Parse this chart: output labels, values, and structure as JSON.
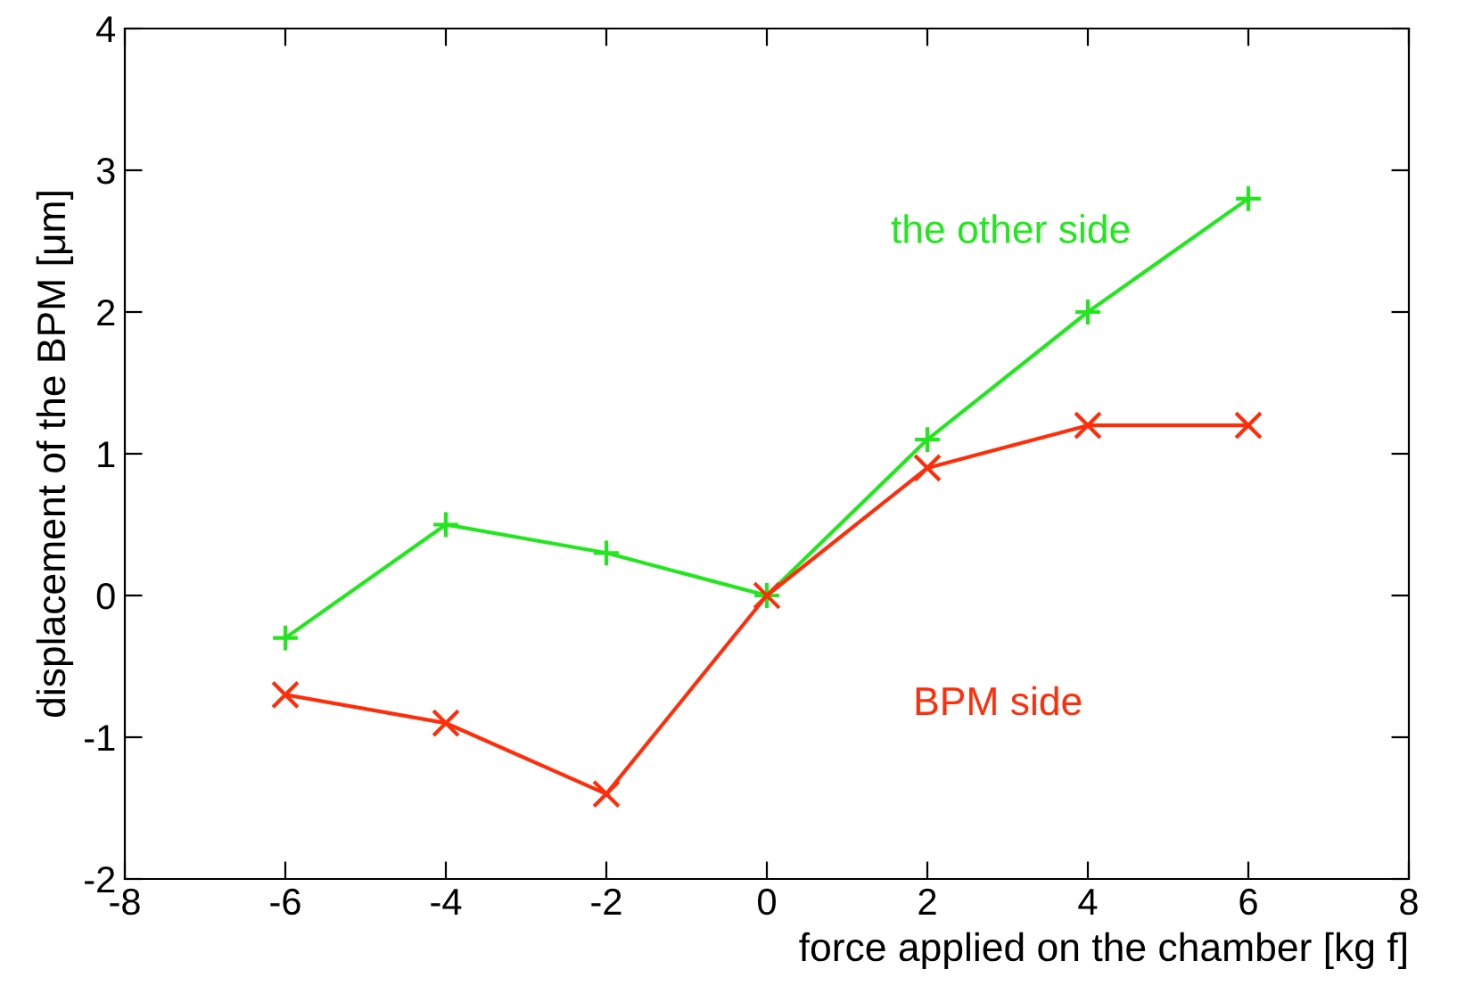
{
  "chart_data": {
    "type": "line",
    "xlabel": "force applied on the chamber [kg f]",
    "ylabel": "displacement of the BPM [μm]",
    "x": [
      -6,
      -4,
      -2,
      0,
      2,
      4,
      6
    ],
    "series": [
      {
        "name": "the other side",
        "color": "#22e61e",
        "marker": "plus",
        "values": [
          -0.3,
          0.5,
          0.3,
          0,
          1.1,
          2.0,
          2.8
        ]
      },
      {
        "name": "BPM side",
        "color": "#ff2d0a",
        "marker": "cross",
        "values": [
          -0.7,
          -0.9,
          -1.4,
          0,
          0.9,
          1.2,
          1.2
        ]
      }
    ],
    "xlim": [
      -8,
      8
    ],
    "xticks": [
      -8,
      -6,
      -4,
      -2,
      0,
      2,
      4,
      6,
      8
    ],
    "ylim": [
      -2,
      4
    ],
    "yticks": [
      -2,
      -1,
      0,
      1,
      2,
      3,
      4
    ],
    "grid": false,
    "legend": false,
    "line_style": "solid"
  }
}
